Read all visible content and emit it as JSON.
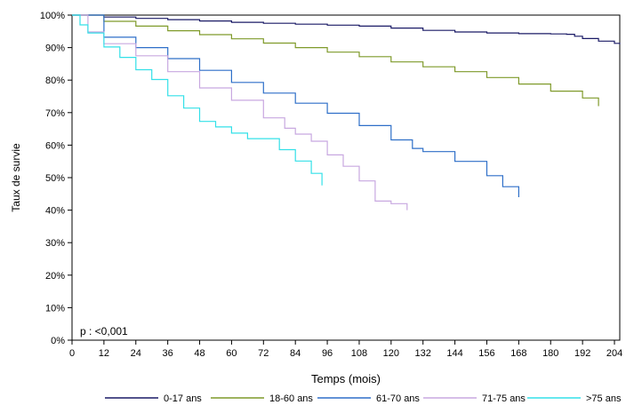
{
  "chart_data": {
    "type": "line",
    "xlabel": "Temps (mois)",
    "ylabel": "Taux de survie",
    "annotation": "p : <0,001",
    "xlim": [
      0,
      206
    ],
    "ylim": [
      0,
      100
    ],
    "xticks": [
      "0",
      "12",
      "24",
      "36",
      "48",
      "60",
      "72",
      "84",
      "96",
      "108",
      "120",
      "132",
      "144",
      "156",
      "168",
      "180",
      "192",
      "204"
    ],
    "yticks": [
      "0%",
      "10%",
      "20%",
      "30%",
      "40%",
      "50%",
      "60%",
      "70%",
      "80%",
      "90%",
      "100%"
    ],
    "grid": false,
    "legend_position": "bottom",
    "series": [
      {
        "name": "0-17 ans",
        "color": "#1a1a66",
        "points": [
          [
            0,
            100
          ],
          [
            12,
            99.4
          ],
          [
            24,
            99
          ],
          [
            36,
            98.6
          ],
          [
            48,
            98.2
          ],
          [
            60,
            97.8
          ],
          [
            72,
            97.5
          ],
          [
            84,
            97.2
          ],
          [
            96,
            96.9
          ],
          [
            108,
            96.6
          ],
          [
            120,
            96
          ],
          [
            132,
            95.3
          ],
          [
            144,
            94.8
          ],
          [
            156,
            94.5
          ],
          [
            168,
            94.3
          ],
          [
            180,
            94.2
          ],
          [
            186,
            94.1
          ],
          [
            189,
            93.5
          ],
          [
            192,
            92.8
          ],
          [
            198,
            92
          ],
          [
            204,
            91.3
          ],
          [
            206,
            91
          ]
        ]
      },
      {
        "name": "18-60 ans",
        "color": "#7f9a2a",
        "points": [
          [
            0,
            100
          ],
          [
            12,
            98.1
          ],
          [
            24,
            96.6
          ],
          [
            36,
            95.2
          ],
          [
            48,
            94
          ],
          [
            60,
            92.7
          ],
          [
            72,
            91.4
          ],
          [
            84,
            90
          ],
          [
            96,
            88.6
          ],
          [
            108,
            87.2
          ],
          [
            120,
            85.6
          ],
          [
            132,
            84.1
          ],
          [
            144,
            82.6
          ],
          [
            156,
            80.8
          ],
          [
            168,
            78.8
          ],
          [
            180,
            76.6
          ],
          [
            192,
            74.5
          ],
          [
            198,
            72
          ]
        ]
      },
      {
        "name": "61-70 ans",
        "color": "#2e6fc8",
        "points": [
          [
            0,
            100
          ],
          [
            12,
            93.2
          ],
          [
            24,
            90
          ],
          [
            36,
            86.6
          ],
          [
            48,
            83
          ],
          [
            60,
            79.3
          ],
          [
            72,
            76
          ],
          [
            84,
            72.9
          ],
          [
            96,
            69.8
          ],
          [
            108,
            66
          ],
          [
            120,
            61.6
          ],
          [
            128,
            59
          ],
          [
            132,
            58
          ],
          [
            144,
            55
          ],
          [
            156,
            50.6
          ],
          [
            162,
            47.2
          ],
          [
            168,
            44
          ]
        ]
      },
      {
        "name": "71-75 ans",
        "color": "#c8a8e0",
        "points": [
          [
            0,
            100
          ],
          [
            6,
            94.8
          ],
          [
            12,
            91.2
          ],
          [
            24,
            87.5
          ],
          [
            36,
            82.6
          ],
          [
            48,
            77.6
          ],
          [
            60,
            73.8
          ],
          [
            72,
            68.4
          ],
          [
            80,
            65.2
          ],
          [
            84,
            63.4
          ],
          [
            90,
            61.2
          ],
          [
            96,
            57
          ],
          [
            102,
            53.5
          ],
          [
            108,
            49
          ],
          [
            114,
            42.8
          ],
          [
            120,
            42
          ],
          [
            126,
            40
          ]
        ]
      },
      {
        "name": ">75 ans",
        "color": "#33e0e8",
        "points": [
          [
            0,
            100
          ],
          [
            3,
            97
          ],
          [
            6,
            94.5
          ],
          [
            12,
            90.2
          ],
          [
            18,
            87
          ],
          [
            24,
            83.2
          ],
          [
            30,
            80.2
          ],
          [
            36,
            75.2
          ],
          [
            42,
            71.4
          ],
          [
            48,
            67.3
          ],
          [
            54,
            65.6
          ],
          [
            60,
            63.7
          ],
          [
            66,
            62
          ],
          [
            72,
            62
          ],
          [
            78,
            58.6
          ],
          [
            84,
            55.1
          ],
          [
            90,
            51.3
          ],
          [
            94,
            47.6
          ]
        ]
      }
    ]
  }
}
